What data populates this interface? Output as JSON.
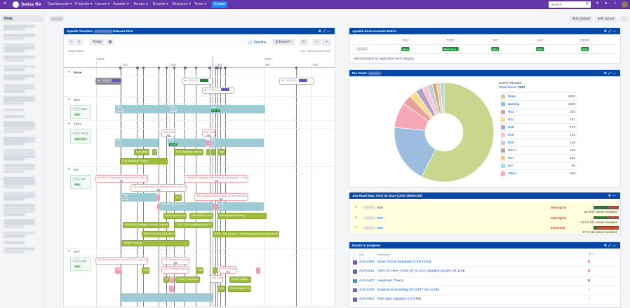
{
  "nav": {
    "logo": "Swiss Re",
    "menus": [
      "Dashboards ▾",
      "Projects ▾",
      "Issues ▾",
      "Apwide ▾",
      "Tempo ▾",
      "Boards ▾",
      "Structure ▾",
      "Tests ▾"
    ],
    "create": "Create",
    "search_placeholder": "Search",
    "bg_color": "#6236a8"
  },
  "sidebar": {
    "active_item": "Ph4s"
  },
  "page": {
    "add_gadget": "Add gadget",
    "edit_layout": "Edit layout",
    "more": "···"
  },
  "timeline": {
    "title_prefix": "Apwide Timeline:",
    "title_suffix": "Release Plan",
    "today_btn": "Today",
    "timeline_link": "Timeline",
    "export_btn": "Export ▾",
    "drag_hint": "(drag timeline)",
    "zoom_hint": "(ctrl + scroll to zoom in/out)",
    "today": "2019-11-29",
    "years": [
      {
        "label": "2019",
        "date": "2019-09-15"
      },
      {
        "label": "2020",
        "date": "2020-01-01"
      }
    ],
    "months": [
      {
        "label": "Oct",
        "date": "2019-10-01"
      },
      {
        "label": "Nov",
        "date": "2019-11-01"
      },
      {
        "label": "Dec",
        "date": "2019-12-01"
      },
      {
        "label": "Jan",
        "date": "2020-01-01"
      },
      {
        "label": "Feb",
        "date": "2020-02-01"
      }
    ],
    "milestones": [
      "2019-09-30",
      "2019-10-11",
      "2019-10-15",
      "2019-10-25",
      "2019-10-30",
      "2019-11-04",
      "2019-11-11",
      "2019-11-18",
      "2019-11-27",
      "2019-12-01",
      "2019-12-02",
      "2019-12-04",
      "2019-12-07",
      "2020-01-22"
    ],
    "lanes": [
      {
        "name": "None",
        "env": null,
        "rows": [
          [
            {
              "type": "card gray",
              "start": "2019-09-14",
              "end": "2019-10-01",
              "status": "#6554c0"
            },
            {
              "type": "card",
              "start": "2019-11-09",
              "end": "2019-11-29",
              "status": "#14892c"
            },
            {
              "type": "card",
              "start": "2020-01-11",
              "end": "2020-02-03",
              "status": "#6554c0"
            }
          ],
          [
            {
              "type": "card",
              "start": "2019-11-22",
              "end": "2019-12-13",
              "status": "#6554c0"
            }
          ]
        ]
      },
      {
        "name": "DEV",
        "env": {
          "label": "DEV",
          "version": "R34"
        },
        "rows": [
          [
            {
              "type": "env",
              "label": "R30",
              "badge": "R30",
              "start": "2019-09-27",
              "end": "2019-11-01"
            },
            {
              "type": "env",
              "label": "R31",
              "badge": "R31",
              "start": "2019-11-01",
              "end": "2019-11-27"
            },
            {
              "type": "env",
              "label": "R34",
              "badge": "R34 UP",
              "badge_green": true,
              "start": "2019-11-27",
              "end": "2020-01-02"
            }
          ]
        ]
      },
      {
        "name": "TST1",
        "env": {
          "label": "TST1",
          "version": "R33 FULL"
        },
        "rows": [
          [
            {
              "type": "deploy",
              "label": "R30 Deployment",
              "badge": "R3",
              "start": "2019-10-27",
              "end": "2019-11-05"
            },
            {
              "type": "deploy",
              "label": "R31 Deployment",
              "badge": "R3",
              "start": "2019-11-22",
              "end": "2019-12-01"
            }
          ],
          [
            {
              "type": "env",
              "label": "R30",
              "badge": "R3",
              "start": "2019-09-27",
              "end": "2019-10-25"
            },
            {
              "type": "env",
              "label": "R31",
              "badge": "R3 UP",
              "badge_green": true,
              "start": "2019-10-31",
              "end": "2019-11-25"
            },
            {
              "type": "pinkf",
              "label": "",
              "start": "2019-11-25",
              "end": "2019-11-27"
            },
            {
              "type": "env",
              "label": "R33",
              "badge": "R3",
              "start": "2019-11-27",
              "end": "2020-01-01"
            }
          ],
          [
            {
              "type": "task",
              "label": "DWH/Reporting",
              "start": "2019-10-09",
              "end": "2019-10-19"
            },
            {
              "type": "task",
              "label": "DWH",
              "start": "2019-10-21",
              "end": "2019-10-24"
            },
            {
              "type": "task",
              "label": "R30 Migration Testing",
              "start": "2019-11-04",
              "end": "2019-11-23"
            },
            {
              "type": "task",
              "label": "",
              "start": "2019-11-25",
              "end": "2019-11-27"
            },
            {
              "type": "task",
              "label": "",
              "start": "2019-11-28",
              "end": "2019-11-30"
            },
            {
              "type": "task",
              "label": "Migra",
              "start": "2019-12-02",
              "end": "2019-12-07"
            }
          ],
          [
            {
              "type": "task",
              "label": "R30 Migration Testing",
              "start": "2019-09-30",
              "end": "2019-10-31"
            }
          ]
        ]
      },
      {
        "name": "SIT",
        "env": {
          "label": "SIT",
          "version": "R33"
        },
        "rows": [
          [
            {
              "type": "deploy",
              "label": "R30/R29 Deployment (shared DWH and Reporting)",
              "badge": "Re",
              "start": "2019-09-14",
              "end": "2019-10-18"
            },
            {
              "type": "deploy",
              "label": "R30/R29 Upgrade after Post-go-live release; 7 May DB connection",
              "badge": "Re",
              "start": "2019-11-11",
              "end": "2019-12-22"
            }
          ],
          [
            {
              "type": "deploy",
              "label": "R30 Upgrade after the deployment: FULL Load issue",
              "badge": "R3",
              "start": "2019-10-07",
              "end": "2019-11-12"
            }
          ],
          [
            {
              "type": "env",
              "label": "R30",
              "badge": "R3",
              "start": "2019-10-01",
              "end": "2019-10-24"
            },
            {
              "type": "pinkf",
              "label": "",
              "start": "2019-10-24",
              "end": "2019-10-26"
            },
            {
              "type": "task",
              "label": "Ad-hoc",
              "start": "2019-11-04",
              "end": "2019-11-09"
            },
            {
              "type": "deploy",
              "label": "R30 Deployment: Possibly (to be) deployed PROD",
              "badge": "R3",
              "start": "2019-11-17",
              "end": "2019-12-22"
            }
          ],
          [
            {
              "type": "pinkf",
              "label": "",
              "start": "2019-10-24",
              "end": "2019-10-26"
            },
            {
              "type": "env",
              "label": "R30 PROD Like Env",
              "start": "2019-10-26",
              "end": "2019-11-29"
            },
            {
              "type": "pinkf",
              "label": "",
              "start": "2019-11-29",
              "end": "2019-12-02"
            },
            {
              "type": "env",
              "label": "R34",
              "badge": "R3",
              "start": "2019-12-02",
              "end": "2020-01-01"
            }
          ],
          [
            {
              "type": "task",
              "label": "DWD technical testing",
              "start": "2019-10-28",
              "end": "2019-11-12"
            },
            {
              "type": "task",
              "label": "R30 PROD Like Env",
              "start": "2019-11-14",
              "end": "2019-11-29"
            },
            {
              "type": "task",
              "label": "R30 Migration Testing",
              "start": "2019-12-02",
              "end": "2020-01-03"
            }
          ],
          [
            {
              "type": "task",
              "label": "[R30] SDI Strategic Testing: Reporting and 1 to",
              "start": "2019-10-02",
              "end": "2019-11-01"
            },
            {
              "type": "task",
              "label": "T SIG EVM Installation and T & preparation",
              "start": "2019-11-04",
              "end": "2019-11-29"
            }
          ],
          [
            {
              "type": "task",
              "label": "[R30] EVM FN 2019 test: Switchover",
              "start": "2019-10-14",
              "end": "2019-11-05"
            },
            {
              "type": "task",
              "label": "EVM - Will run one 3 remaining cycles in production by mid Decem",
              "start": "2019-11-29",
              "end": "2020-01-11"
            }
          ],
          [
            {
              "type": "task",
              "label": "DataFix Testing",
              "start": "2019-10-01",
              "end": "2019-11-14"
            }
          ]
        ]
      },
      {
        "name": "UAT",
        "env": {
          "label": "UAT",
          "version": "R33"
        },
        "rows": [
          [
            {
              "type": "deploy",
              "label": "R30 Deployment on top of PROD copy of DWH Rep",
              "start": "2019-09-14",
              "end": "2019-10-18"
            },
            {
              "type": "deploy",
              "label": "R30 Release Deployment",
              "badge": "Re",
              "start": "2019-10-27",
              "end": "2019-11-14"
            }
          ],
          [
            {
              "type": "pinkf",
              "label": "PRE",
              "start": "2019-09-27",
              "end": "2019-10-01"
            },
            {
              "type": "task",
              "label": "DWD",
              "start": "2019-10-14",
              "end": "2019-10-19"
            },
            {
              "type": "deploy",
              "label": "R30 Release Deployment",
              "start": "2019-10-27",
              "end": "2019-11-14"
            },
            {
              "type": "task",
              "label": "R30 L",
              "start": "2019-11-18",
              "end": "2019-11-23"
            },
            {
              "type": "task",
              "label": "",
              "start": "2019-11-29",
              "end": "2019-11-30"
            },
            {
              "type": "deploy",
              "label": "R30 Deployment",
              "badge": "R3",
              "start": "2019-12-03",
              "end": "2019-12-15"
            },
            {
              "type": "pinkf",
              "label": "",
              "start": "2019-12-27",
              "end": "2019-12-30"
            }
          ],
          [
            {
              "type": "task",
              "label": "Pres",
              "start": "2019-10-28",
              "end": "2019-11-01"
            },
            {
              "type": "pinkf",
              "label": "UP",
              "start": "2019-11-01",
              "end": "2019-11-04"
            },
            {
              "type": "task",
              "label": "Oracle Exdatabase Sta",
              "start": "2019-11-05",
              "end": "2019-11-21"
            },
            {
              "type": "deploy",
              "label": "UAT Environ",
              "start": "2019-11-27",
              "end": "2019-12-06"
            },
            {
              "type": "task",
              "label": "Oracle Tables",
              "start": "2019-12-10",
              "end": "2019-12-24"
            }
          ],
          [
            {
              "type": "pinkf",
              "label": "UP",
              "start": "2019-11-01",
              "end": "2019-11-04"
            },
            {
              "type": "task",
              "label": "MACS",
              "start": "2019-12-02",
              "end": "2019-12-07"
            },
            {
              "type": "task",
              "label": "Performance Testing",
              "start": "2019-12-09",
              "end": "2019-12-24"
            }
          ],
          [
            {
              "type": "env",
              "label": "",
              "start": "2019-09-30",
              "end": "2019-11-29"
            }
          ]
        ]
      }
    ]
  },
  "env_matrix": {
    "title": "Apwide Environments Matrix",
    "columns": [
      "DEV",
      "TST1",
      "SIT",
      "UAT",
      "PROD"
    ],
    "values": [
      "R34",
      "R33 FULL",
      "R33",
      "R33",
      "R32"
    ],
    "caption": "Version/Status by Application and Category"
  },
  "pie": {
    "title": "Pie Chart:",
    "heading": "CorFIT Release",
    "total_label": "Total Issues:",
    "total": "7843",
    "legend": [
      {
        "label": "None",
        "value": 4502,
        "color": "#c8d68e"
      },
      {
        "label": "Backlog",
        "value": 1506,
        "color": "#9dbde0"
      },
      {
        "label": "R32",
        "value": 245,
        "color": "#e8a09a"
      },
      {
        "label": "R31",
        "value": 187,
        "color": "#fadc8f"
      },
      {
        "label": "R29",
        "value": 179,
        "color": "#b0a2c7"
      },
      {
        "label": "R28",
        "value": 142,
        "color": "#f7c5d6"
      },
      {
        "label": "R30",
        "value": 135,
        "color": "#cccccc"
      },
      {
        "label": "R31.1",
        "value": 103,
        "color": "#bfa890"
      },
      {
        "label": "R27",
        "value": 101,
        "color": "#fcc896"
      },
      {
        "label": "N/A",
        "value": 95,
        "color": "#a9d8f2"
      },
      {
        "label": "Other...",
        "value": 648,
        "color": "#f5a7b5"
      }
    ],
    "slice_order": [
      "None",
      "Backlog",
      "Other...",
      "R32",
      "R31",
      "R29",
      "R28",
      "R30",
      "R31.1",
      "R27",
      "N/A"
    ]
  },
  "roadmap": {
    "title": "Jira Road Map: Next 30 Days (Until 29/Dec/19)",
    "items": [
      {
        "version": ": R30",
        "date": "06/Aug/19",
        "resolved": 34,
        "total": 57,
        "text": "34 of 57 issues resolved."
      },
      {
        "version": ": R31",
        "date": "26/Aug/19",
        "resolved": 124,
        "total": 221,
        "text": "124 of 221 issues resolved."
      },
      {
        "version": ": R32",
        "date": "01/Oct/19",
        "resolved": 17,
        "total": 112,
        "text": "17 of 112 issues resolved."
      }
    ]
  },
  "issues": {
    "title": "Issues in progress",
    "col_type": "T",
    "col_key": "Key",
    "col_summary": "Summary",
    "col_priority": "P ↓",
    "rows": [
      {
        "type": "story",
        "key": "ALN-2859",
        "summary": "Move Oracle Database to the Cloud",
        "priority": "high"
      },
      {
        "type": "story",
        "key": "ALN-3021",
        "summary": "GFD CF view - EVM_KF to ACC migration as per CR 1168",
        "priority": "high"
      },
      {
        "type": "task",
        "key": "ALN-3407",
        "summary": "Handover Thierry",
        "priority": "low"
      },
      {
        "type": "story",
        "key": "ALN-2423",
        "summary": "Support on boarding of CorFIT into ALMA",
        "priority": "none"
      },
      {
        "type": "story",
        "key": "ALN-2921",
        "summary": "Plan data migration to GFDM",
        "priority": "none"
      }
    ]
  }
}
